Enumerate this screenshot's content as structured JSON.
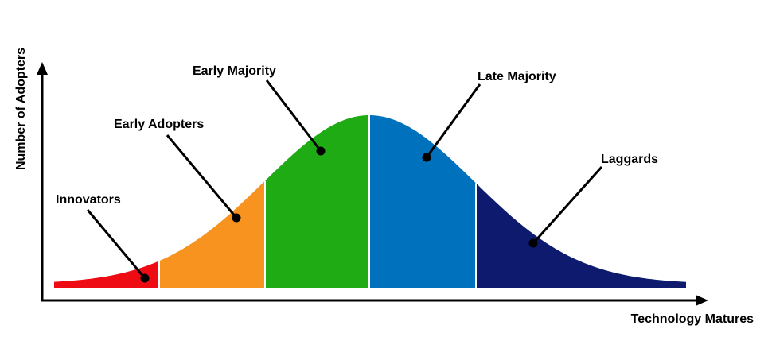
{
  "y_axis_label": "Number of Adopters",
  "x_axis_label": "Technology Matures",
  "segments": [
    {
      "label": "Innovators"
    },
    {
      "label": "Early Adopters"
    },
    {
      "label": "Early Majority"
    },
    {
      "label": "Late Majority"
    },
    {
      "label": "Laggards"
    }
  ]
}
